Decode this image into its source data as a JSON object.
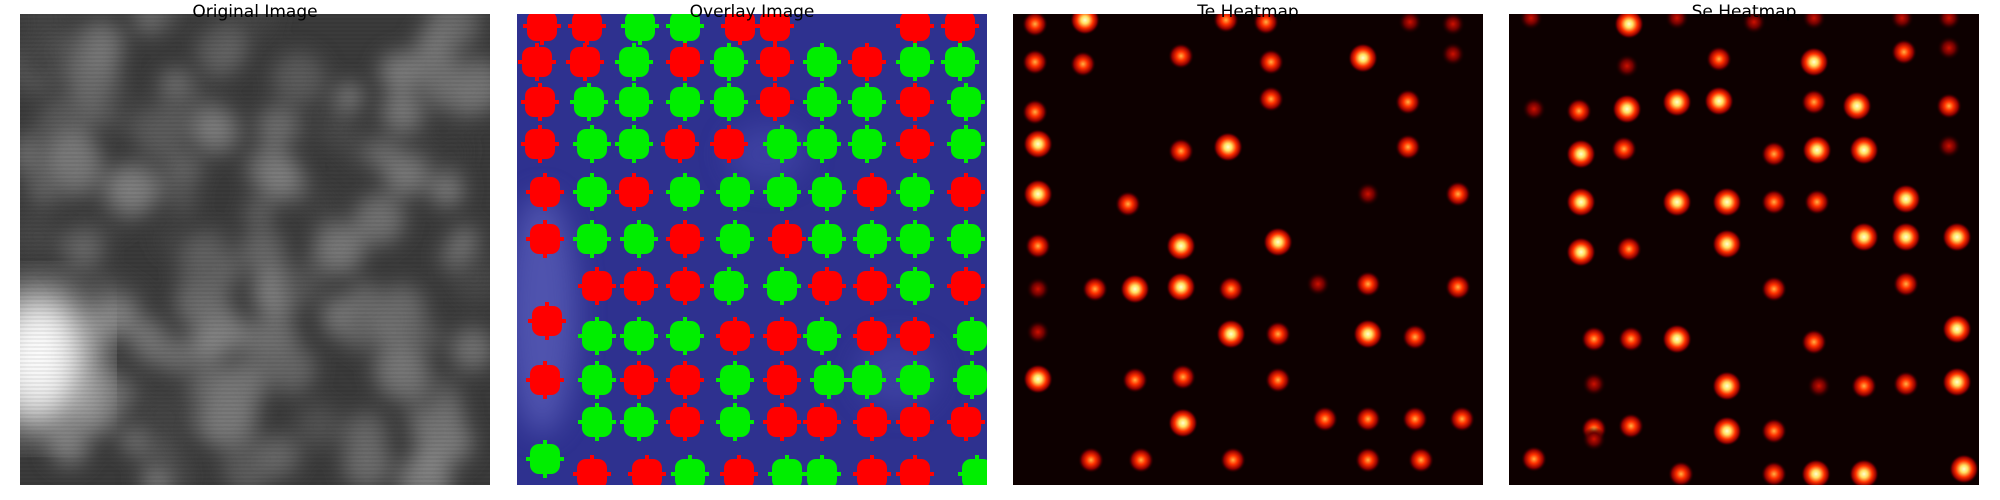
{
  "panels": [
    {
      "title": "Original Image"
    },
    {
      "title": "Overlay Image"
    },
    {
      "title": "Te Heatmap"
    },
    {
      "title": "Se Heatmap"
    }
  ],
  "colors": {
    "overlay_background": "#2e318f",
    "marker_red": "#ff0000",
    "marker_green": "#00ee00",
    "heatmap_background": "#0d0000",
    "heatmap_hot": "#ffffa0",
    "heatmap_mid": "#ff3000",
    "heatmap_low": "#8b0000"
  }
}
